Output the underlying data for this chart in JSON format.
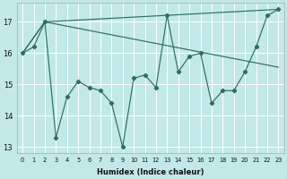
{
  "xlabel": "Humidex (Indice chaleur)",
  "background_color": "#c2e8e8",
  "grid_color": "#dcdcdc",
  "line_color": "#2e6e62",
  "x_values": [
    0,
    1,
    2,
    3,
    4,
    5,
    6,
    7,
    8,
    9,
    10,
    11,
    12,
    13,
    14,
    15,
    16,
    17,
    18,
    19,
    20,
    21,
    22,
    23
  ],
  "series_main": [
    16.0,
    16.2,
    17.0,
    13.3,
    14.6,
    15.1,
    14.9,
    14.8,
    14.4,
    13.0,
    15.2,
    15.3,
    14.9,
    17.2,
    15.4,
    15.9,
    16.0,
    14.4,
    14.8,
    14.8,
    15.4,
    16.2,
    17.2,
    17.4
  ],
  "trend1_x": [
    0,
    2,
    23
  ],
  "trend1_y": [
    16.0,
    17.0,
    15.55
  ],
  "trend2_x": [
    0,
    2,
    23
  ],
  "trend2_y": [
    16.0,
    17.0,
    17.4
  ],
  "ylim": [
    12.8,
    17.6
  ],
  "yticks": [
    13,
    14,
    15,
    16,
    17
  ],
  "xticks": [
    0,
    1,
    2,
    3,
    4,
    5,
    6,
    7,
    8,
    9,
    10,
    11,
    12,
    13,
    14,
    15,
    16,
    17,
    18,
    19,
    20,
    21,
    22,
    23
  ]
}
